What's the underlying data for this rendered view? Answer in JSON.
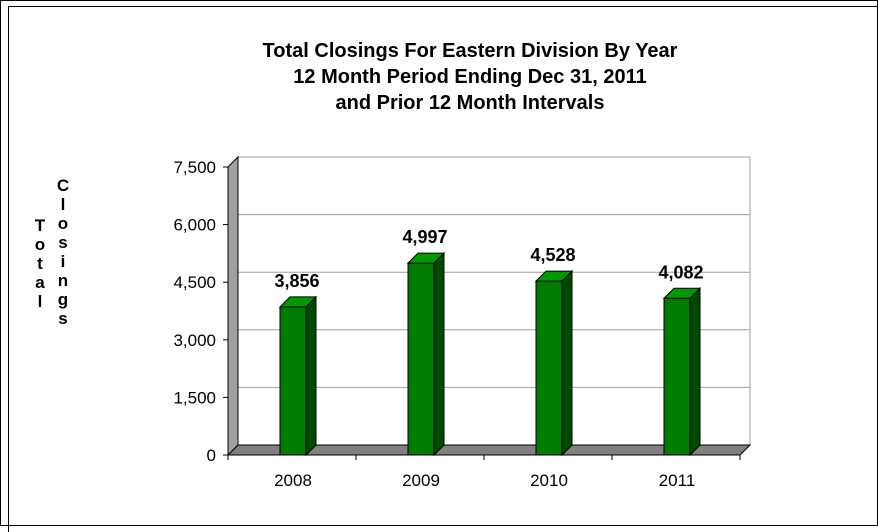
{
  "chart_data": {
    "type": "bar",
    "title_lines": [
      "Total Closings For Eastern Division By Year",
      "12 Month Period Ending Dec 31, 2011",
      "and Prior 12 Month Intervals"
    ],
    "ylabel_words": [
      "Total",
      "Closings"
    ],
    "categories": [
      "2008",
      "2009",
      "2010",
      "2011"
    ],
    "values": [
      3856,
      4997,
      4528,
      4082
    ],
    "data_labels": [
      "3,856",
      "4,997",
      "4,528",
      "4,082"
    ],
    "yticks": [
      0,
      1500,
      3000,
      4500,
      6000,
      7500
    ],
    "ytick_labels": [
      "0",
      "1,500",
      "3,000",
      "4,500",
      "6,000",
      "7,500"
    ],
    "ylim": [
      0,
      7500
    ],
    "grid": true,
    "bar_color": "#007a00",
    "bar_side_color": "#004a00",
    "bar_top_color": "#009a00",
    "floor_color": "#808080",
    "wall_side_color": "#a0a0a0"
  }
}
